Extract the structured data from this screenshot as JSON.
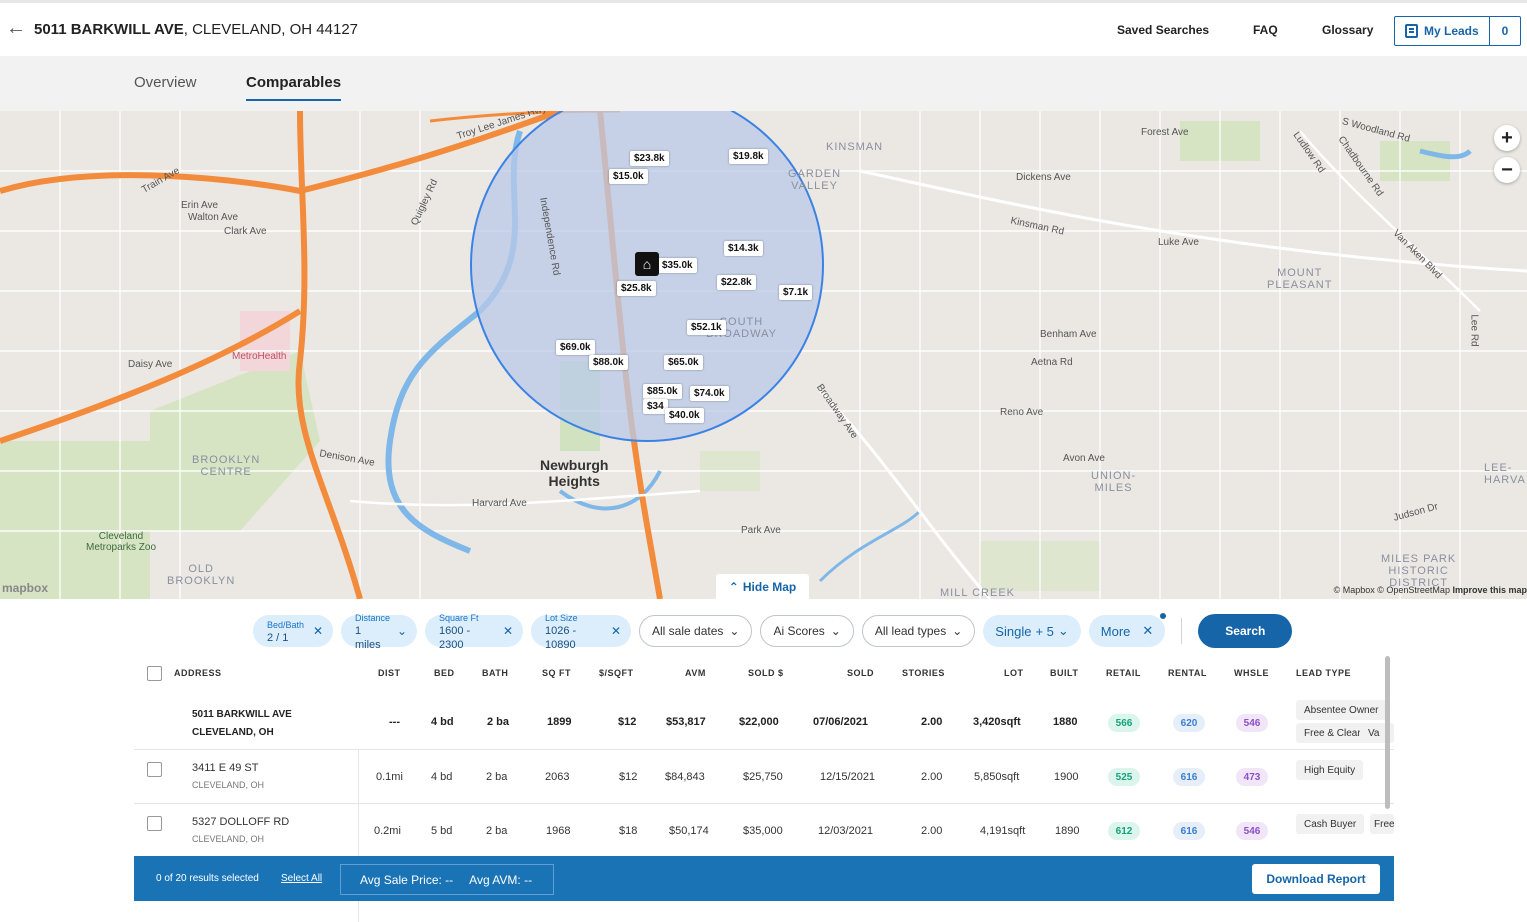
{
  "header": {
    "address_street": "5011 BARKWILL AVE",
    "address_city": ", CLEVELAND, OH 44127",
    "nav": [
      "Saved Searches",
      "FAQ",
      "Glossary"
    ],
    "my_leads_label": "My Leads",
    "my_leads_count": "0"
  },
  "tabs": [
    "Overview",
    "Comparables"
  ],
  "active_tab": "Comparables",
  "map": {
    "price_tags": [
      "$23.8k",
      "$19.8k",
      "$15.0k",
      "$14.3k",
      "$35.0k",
      "$22.8k",
      "$25.8k",
      "$7.1k",
      "$52.1k",
      "$69.0k",
      "$88.0k",
      "$65.0k",
      "$85.0k",
      "$74.0k",
      "$34",
      "$40.0k"
    ],
    "labels": {
      "newburgh": "Newburgh\nHeights",
      "kinsman": "KINSMAN",
      "garden_valley": "GARDEN\nVALLEY",
      "south_broadway": "SOUTH\nBROADWAY",
      "mount_pleasant": "MOUNT\nPLEASANT",
      "brooklyn_centre": "BROOKLYN\nCENTRE",
      "old_brooklyn": "OLD\nBROOKLYN",
      "union_miles": "UNION-\nMILES",
      "miles_park": "MILES PARK\nHISTORIC\nDISTRICT",
      "mill_creek": "MILL CREEK",
      "metrohealth": "MetroHealth",
      "zoo": "Cleveland\nMetroparks Zoo",
      "lee_harvard": "LEE-\nHARVA",
      "troy_lee": "Troy Lee James Hwy",
      "train_ave": "Train Ave",
      "erin_ave": "Erin Ave",
      "walton_ave": "Walton Ave",
      "clark_ave": "Clark Ave",
      "quigley": "Quigley Rd",
      "daisy": "Daisy Ave",
      "denison": "Denison Ave",
      "harvard": "Harvard Ave",
      "park_ave": "Park Ave",
      "broadway": "Broadway Ave",
      "kinsman_rd": "Kinsman Rd",
      "dickens": "Dickens Ave",
      "forest": "Forest Ave",
      "luke": "Luke Ave",
      "benham": "Benham Ave",
      "aetna": "Aetna Rd",
      "reno": "Reno Ave",
      "avon": "Avon Ave",
      "judson": "Judson Dr",
      "woodland": "S Woodland Rd",
      "van_aken": "Van Aken Blvd",
      "independence": "Independence Rd",
      "chadbourne": "Chadbourne Rd",
      "ludlow": "Ludlow Rd",
      "lee_rd": "Lee Rd"
    },
    "hide_map_label": "Hide Map",
    "mapbox_logo": "mapbox",
    "attribution": "© Mapbox © OpenStreetMap",
    "improve": "Improve this map"
  },
  "filters": {
    "chips": [
      {
        "label": "Bed/Bath",
        "value": "2 / 1",
        "icon": "close-icon"
      },
      {
        "label": "Distance",
        "value": "1 miles",
        "icon": "chevron-down-icon"
      },
      {
        "label": "Square Ft",
        "value": "1600 - 2300",
        "icon": "close-icon"
      },
      {
        "label": "Lot Size",
        "value": "1026 - 10890",
        "icon": "close-icon"
      }
    ],
    "selects": [
      "All sale dates",
      "Ai Scores",
      "All lead types"
    ],
    "single_label": "Single",
    "single_extra": "+ 5",
    "more_label": "More",
    "search_label": "Search"
  },
  "table": {
    "headers": [
      "ADDRESS",
      "DIST",
      "BED",
      "BATH",
      "SQ FT",
      "$/SQFT",
      "AVM",
      "SOLD $",
      "SOLD",
      "STORIES",
      "LOT",
      "BUILT",
      "RETAIL",
      "RENTAL",
      "WHSLE",
      "LEAD TYPE"
    ],
    "subject": {
      "street": "5011 BARKWILL AVE",
      "city": "CLEVELAND, OH",
      "dist": "---",
      "bed": "4 bd",
      "bath": "2 ba",
      "sqft": "1899",
      "ppsf": "$12",
      "avm": "$53,817",
      "sold_price": "$22,000",
      "sold_date": "07/06/2021",
      "stories": "2.00",
      "lot": "3,420sqft",
      "built": "1880",
      "retail": "566",
      "rental": "620",
      "whsle": "546",
      "lead_types": [
        "Absentee Owner",
        "Free & Clear",
        "Va"
      ]
    },
    "rows": [
      {
        "street": "3411 E 49 ST",
        "city": "CLEVELAND, OH",
        "dist": "0.1mi",
        "bed": "4 bd",
        "bath": "2 ba",
        "sqft": "2063",
        "ppsf": "$12",
        "avm": "$84,843",
        "sold_price": "$25,750",
        "sold_date": "12/15/2021",
        "stories": "2.00",
        "lot": "5,850sqft",
        "built": "1900",
        "retail": "525",
        "rental": "616",
        "whsle": "473",
        "lead_types": [
          "High Equity"
        ]
      },
      {
        "street": "5327 DOLLOFF RD",
        "city": "CLEVELAND, OH",
        "dist": "0.2mi",
        "bed": "5 bd",
        "bath": "2 ba",
        "sqft": "1968",
        "ppsf": "$18",
        "avm": "$50,174",
        "sold_price": "$35,000",
        "sold_date": "12/03/2021",
        "stories": "2.00",
        "lot": "4,191sqft",
        "built": "1890",
        "retail": "612",
        "rental": "616",
        "whsle": "546",
        "lead_types": [
          "Cash Buyer",
          "Free"
        ]
      }
    ]
  },
  "actionbar": {
    "selected_text": "0 of 20 results selected",
    "select_all": "Select All",
    "avg_sale": "Avg Sale Price: --",
    "avg_avm": "Avg AVM: --",
    "download": "Download Report"
  },
  "colors": {
    "brand_blue": "#1565a8",
    "highway_orange": "#f28c3c",
    "radius_fill": "#b9c9e8",
    "retail_green": "#14a37a",
    "rental_blue": "#3c7fd0",
    "whsle_purple": "#8d4fc9"
  }
}
